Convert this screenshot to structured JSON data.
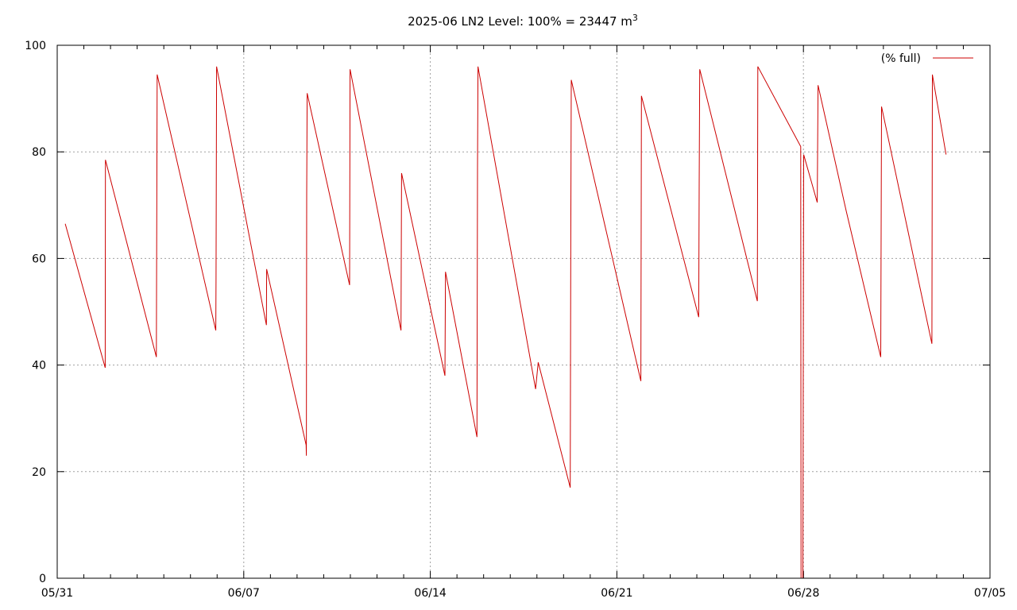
{
  "chart_data": {
    "type": "line",
    "title": "2025-06 LN2 Level: 100% = 23447 m",
    "title_superscript": "3",
    "xlabel": "",
    "ylabel": "",
    "x_unit": "days since 05/31",
    "xlim_dates": [
      "05/31",
      "07/05"
    ],
    "ylim": [
      0,
      100
    ],
    "grid": true,
    "legend_position": "top-right",
    "x_ticks": [
      {
        "day": 0,
        "label": "05/31"
      },
      {
        "day": 7,
        "label": "06/07"
      },
      {
        "day": 14,
        "label": "06/14"
      },
      {
        "day": 21,
        "label": "06/21"
      },
      {
        "day": 28,
        "label": "06/28"
      },
      {
        "day": 35,
        "label": "07/05"
      }
    ],
    "y_ticks": [
      {
        "value": 0,
        "label": "0"
      },
      {
        "value": 20,
        "label": "20"
      },
      {
        "value": 40,
        "label": "40"
      },
      {
        "value": 60,
        "label": "60"
      },
      {
        "value": 80,
        "label": "80"
      },
      {
        "value": 100,
        "label": "100"
      }
    ],
    "series": [
      {
        "name": "(% full)",
        "color": "#cc0000",
        "points": [
          [
            0.3,
            66.5
          ],
          [
            1.8,
            39.5
          ],
          [
            1.81,
            78.5
          ],
          [
            3.72,
            41.5
          ],
          [
            3.75,
            94.5
          ],
          [
            5.95,
            46.5
          ],
          [
            5.96,
            56.0
          ],
          [
            5.98,
            96.0
          ],
          [
            7.85,
            47.5
          ],
          [
            7.86,
            58.0
          ],
          [
            9.34,
            25.0
          ],
          [
            9.35,
            23.0
          ],
          [
            9.36,
            72.0
          ],
          [
            9.38,
            91.0
          ],
          [
            10.97,
            55.0
          ],
          [
            10.99,
            95.5
          ],
          [
            12.9,
            46.5
          ],
          [
            12.92,
            76.0
          ],
          [
            14.55,
            38.0
          ],
          [
            14.57,
            57.5
          ],
          [
            15.75,
            26.5
          ],
          [
            15.77,
            77.0
          ],
          [
            15.79,
            96.0
          ],
          [
            17.95,
            35.5
          ],
          [
            18.05,
            40.5
          ],
          [
            19.25,
            17.0
          ],
          [
            19.27,
            64.0
          ],
          [
            19.29,
            93.5
          ],
          [
            21.9,
            37.0
          ],
          [
            21.92,
            90.5
          ],
          [
            24.07,
            49.0
          ],
          [
            24.09,
            74.0
          ],
          [
            24.11,
            95.5
          ],
          [
            26.27,
            52.0
          ],
          [
            26.29,
            96.0
          ],
          [
            27.9,
            81.0
          ],
          [
            27.91,
            0.0
          ],
          [
            27.98,
            0.0
          ],
          [
            28.01,
            79.5
          ],
          [
            28.52,
            70.5
          ],
          [
            28.55,
            92.5
          ],
          [
            29.6,
            69.0
          ],
          [
            30.9,
            41.5
          ],
          [
            30.93,
            88.5
          ],
          [
            32.82,
            44.0
          ],
          [
            32.84,
            94.5
          ],
          [
            33.35,
            79.5
          ]
        ]
      }
    ]
  }
}
